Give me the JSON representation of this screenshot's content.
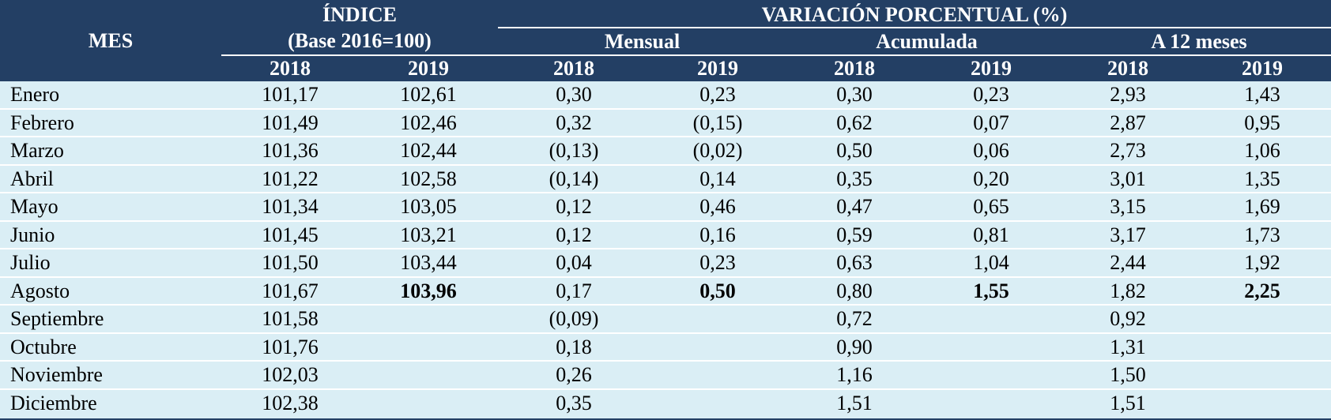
{
  "header": {
    "mes": "MES",
    "indice_title": "ÍNDICE",
    "indice_base": "(Base 2016=100)",
    "variacion_title": "VARIACIÓN PORCENTUAL (%)",
    "mensual": "Mensual",
    "acumulada": "Acumulada",
    "a12": "A 12 meses",
    "years": [
      "2018",
      "2019",
      "2018",
      "2019",
      "2018",
      "2019",
      "2018",
      "2019"
    ]
  },
  "rows": [
    {
      "month": "Enero",
      "v": [
        "101,17",
        "102,61",
        "0,30",
        "0,23",
        "0,30",
        "0,23",
        "2,93",
        "1,43"
      ]
    },
    {
      "month": "Febrero",
      "v": [
        "101,49",
        "102,46",
        "0,32",
        "(0,15)",
        "0,62",
        "0,07",
        "2,87",
        "0,95"
      ]
    },
    {
      "month": "Marzo",
      "v": [
        "101,36",
        "102,44",
        "(0,13)",
        "(0,02)",
        "0,50",
        "0,06",
        "2,73",
        "1,06"
      ]
    },
    {
      "month": "Abril",
      "v": [
        "101,22",
        "102,58",
        "(0,14)",
        "0,14",
        "0,35",
        "0,20",
        "3,01",
        "1,35"
      ]
    },
    {
      "month": "Mayo",
      "v": [
        "101,34",
        "103,05",
        "0,12",
        "0,46",
        "0,47",
        "0,65",
        "3,15",
        "1,69"
      ]
    },
    {
      "month": "Junio",
      "v": [
        "101,45",
        "103,21",
        "0,12",
        "0,16",
        "0,59",
        "0,81",
        "3,17",
        "1,73"
      ]
    },
    {
      "month": "Julio",
      "v": [
        "101,50",
        "103,44",
        "0,04",
        "0,23",
        "0,63",
        "1,04",
        "2,44",
        "1,92"
      ]
    },
    {
      "month": "Agosto",
      "v": [
        "101,67",
        "103,96",
        "0,17",
        "0,50",
        "0,80",
        "1,55",
        "1,82",
        "2,25"
      ]
    },
    {
      "month": "Septiembre",
      "v": [
        "101,58",
        "",
        "(0,09)",
        "",
        "0,72",
        "",
        "0,92",
        ""
      ]
    },
    {
      "month": "Octubre",
      "v": [
        "101,76",
        "",
        "0,18",
        "",
        "0,90",
        "",
        "1,31",
        ""
      ]
    },
    {
      "month": "Noviembre",
      "v": [
        "102,03",
        "",
        "0,26",
        "",
        "1,16",
        "",
        "1,50",
        ""
      ]
    },
    {
      "month": "Diciembre",
      "v": [
        "102,38",
        "",
        "0,35",
        "",
        "1,51",
        "",
        "1,51",
        ""
      ]
    }
  ],
  "colors": {
    "header_bg": "#233f64",
    "row_bg": "#daeef5",
    "separator": "#ffffff"
  }
}
